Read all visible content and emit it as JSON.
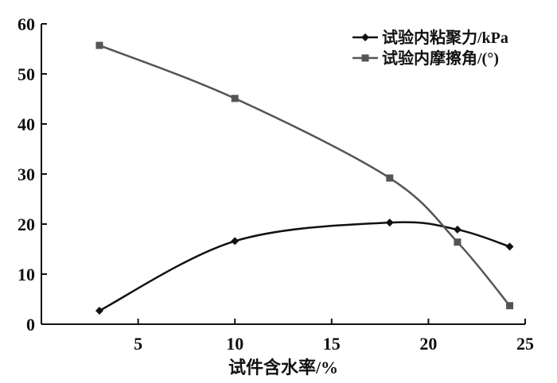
{
  "chart_data": {
    "type": "line",
    "title": "",
    "xlabel": "试件含水率/%",
    "ylabel": "",
    "xlim": [
      0,
      25
    ],
    "ylim": [
      0,
      60
    ],
    "xticks": [
      5,
      10,
      15,
      20,
      25
    ],
    "yticks": [
      0,
      10,
      20,
      30,
      40,
      50,
      60
    ],
    "grid": false,
    "legend_position": "top-right",
    "series": [
      {
        "name": "试验内粘聚力/kPa",
        "marker": "diamond",
        "color": "#111111",
        "x": [
          3.0,
          10.0,
          18.0,
          21.5,
          24.2
        ],
        "y": [
          2.7,
          16.6,
          20.3,
          18.9,
          15.5
        ]
      },
      {
        "name": "试验内摩擦角/(°)",
        "marker": "square",
        "color": "#555555",
        "x": [
          3.0,
          10.0,
          18.0,
          21.5,
          24.2
        ],
        "y": [
          55.7,
          45.1,
          29.2,
          16.4,
          3.7
        ]
      }
    ]
  }
}
